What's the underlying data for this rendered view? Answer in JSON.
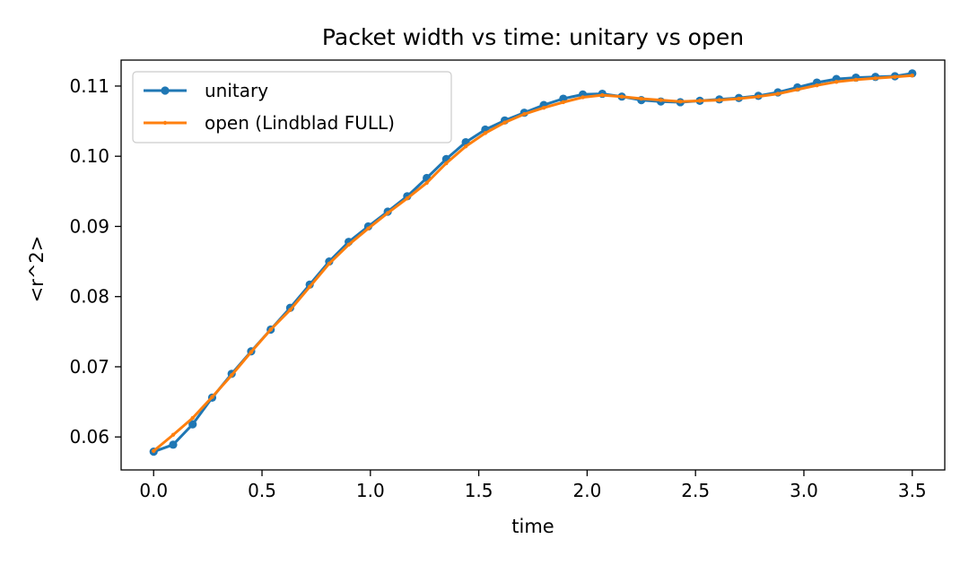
{
  "chart_data": {
    "type": "line",
    "title": "Packet width vs time: unitary vs open",
    "xlabel": "time",
    "ylabel": "<r^2>",
    "xlim": [
      -0.15,
      3.65
    ],
    "ylim": [
      0.0553,
      0.1137
    ],
    "xticks": [
      0.0,
      0.5,
      1.0,
      1.5,
      2.0,
      2.5,
      3.0,
      3.5
    ],
    "xtick_labels": [
      "0.0",
      "0.5",
      "1.0",
      "1.5",
      "2.0",
      "2.5",
      "3.0",
      "3.5"
    ],
    "yticks": [
      0.06,
      0.07,
      0.08,
      0.09,
      0.1,
      0.11
    ],
    "ytick_labels": [
      "0.06",
      "0.07",
      "0.08",
      "0.09",
      "0.10",
      "0.11"
    ],
    "grid": false,
    "legend": "top-left",
    "series": [
      {
        "name": "unitary",
        "color": "#1f77b4",
        "marker": "circle",
        "x": [
          0.0,
          0.09,
          0.18,
          0.27,
          0.36,
          0.45,
          0.54,
          0.63,
          0.72,
          0.81,
          0.9,
          0.99,
          1.08,
          1.17,
          1.26,
          1.35,
          1.44,
          1.53,
          1.62,
          1.71,
          1.8,
          1.89,
          1.98,
          2.07,
          2.16,
          2.25,
          2.34,
          2.43,
          2.52,
          2.61,
          2.7,
          2.79,
          2.88,
          2.97,
          3.06,
          3.15,
          3.24,
          3.33,
          3.42,
          3.5
        ],
        "y": [
          0.0579,
          0.0589,
          0.0618,
          0.0656,
          0.069,
          0.0722,
          0.0753,
          0.0784,
          0.0817,
          0.085,
          0.0878,
          0.09,
          0.0921,
          0.0943,
          0.0969,
          0.0996,
          0.102,
          0.1038,
          0.1051,
          0.1062,
          0.1073,
          0.1082,
          0.1088,
          0.1089,
          0.1085,
          0.108,
          0.1078,
          0.1077,
          0.1079,
          0.1081,
          0.1083,
          0.1086,
          0.1091,
          0.1098,
          0.1105,
          0.111,
          0.1112,
          0.1113,
          0.1114,
          0.1118
        ]
      },
      {
        "name": "open (Lindblad FULL)",
        "color": "#ff7f0e",
        "marker": "small-dot",
        "x": [
          0.0,
          0.09,
          0.18,
          0.27,
          0.36,
          0.45,
          0.54,
          0.63,
          0.72,
          0.81,
          0.9,
          0.99,
          1.08,
          1.17,
          1.26,
          1.35,
          1.44,
          1.53,
          1.62,
          1.71,
          1.8,
          1.89,
          1.98,
          2.07,
          2.16,
          2.25,
          2.34,
          2.43,
          2.52,
          2.61,
          2.7,
          2.79,
          2.88,
          2.97,
          3.06,
          3.15,
          3.24,
          3.33,
          3.42,
          3.5
        ],
        "y": [
          0.058,
          0.0603,
          0.0627,
          0.0657,
          0.0688,
          0.0721,
          0.0753,
          0.0781,
          0.0814,
          0.0847,
          0.0874,
          0.0897,
          0.0919,
          0.094,
          0.0962,
          0.099,
          0.1014,
          0.1033,
          0.1048,
          0.106,
          0.1069,
          0.1077,
          0.1084,
          0.1087,
          0.1085,
          0.1082,
          0.108,
          0.1078,
          0.1079,
          0.108,
          0.1082,
          0.1085,
          0.1089,
          0.1095,
          0.1101,
          0.1106,
          0.1109,
          0.1111,
          0.1113,
          0.1115
        ]
      }
    ]
  }
}
